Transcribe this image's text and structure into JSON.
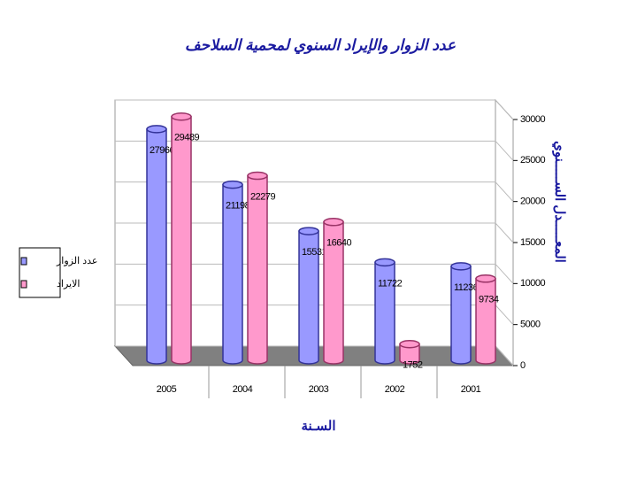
{
  "chart_data": {
    "type": "bar3d",
    "title": "عدد الزوار والإيراد السنوي لمحمية السلاحف",
    "x_label": "السـنة",
    "y_label": "المعـــــدل الســـــنوي",
    "categories": [
      "2005",
      "2004",
      "2003",
      "2002",
      "2001"
    ],
    "series": [
      {
        "name": "عدد الزوار",
        "color": "#9999ff",
        "values": [
          27966,
          21198,
          15531,
          11722,
          11236
        ]
      },
      {
        "name": "الايراد",
        "color": "#ff99cc",
        "values": [
          29489,
          22279,
          16640,
          1752,
          9734
        ]
      }
    ],
    "ylim": [
      0,
      30000
    ],
    "yticks": [
      0,
      5000,
      10000,
      15000,
      20000,
      25000,
      30000
    ],
    "grid": true,
    "legend": "left"
  }
}
